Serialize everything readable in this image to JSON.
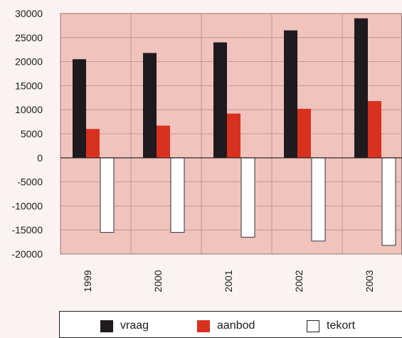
{
  "chart_data": {
    "type": "bar",
    "categories": [
      "1999",
      "2000",
      "2001",
      "2002",
      "2003"
    ],
    "series": [
      {
        "name": "vraag",
        "values": [
          20500,
          21800,
          24000,
          26500,
          29000
        ],
        "color": "#1f1a1d"
      },
      {
        "name": "aanbod",
        "values": [
          6000,
          6700,
          9200,
          10200,
          11800
        ],
        "color": "#d8321f"
      },
      {
        "name": "tekort",
        "values": [
          -15500,
          -15500,
          -16500,
          -17300,
          -18200
        ],
        "color": "#ffffff"
      }
    ],
    "y_ticks": [
      "30000",
      "25000",
      "20000",
      "15000",
      "10000",
      "5000",
      "0",
      "-5000",
      "-10000",
      "-15000",
      "-20000"
    ],
    "ylim": [
      -20000,
      30000
    ],
    "plot_background": "#f0c3bd",
    "grid": true,
    "legend_position": "bottom",
    "title": "",
    "xlabel": "",
    "ylabel": ""
  }
}
